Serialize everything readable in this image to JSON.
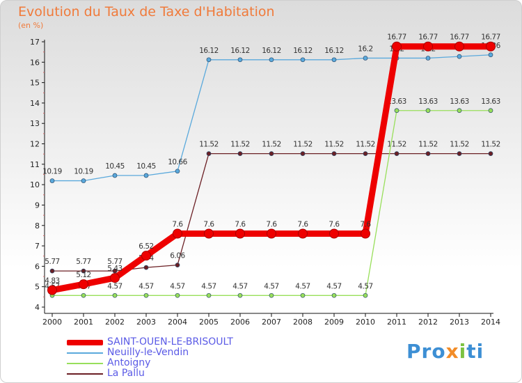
{
  "chart_data": {
    "type": "line",
    "title": "Evolution du Taux de Taxe d'Habitation",
    "unit_label": "(en %)",
    "x": [
      "2000",
      "2001",
      "2002",
      "2003",
      "2004",
      "2005",
      "2006",
      "2007",
      "2008",
      "2009",
      "2010",
      "2011",
      "2012",
      "2013",
      "2014"
    ],
    "ylim": [
      4,
      17
    ],
    "yticks": [
      "4",
      "5",
      "6",
      "7",
      "8",
      "9",
      "10",
      "11",
      "12",
      "13",
      "14",
      "15",
      "16",
      "17"
    ],
    "grid": false,
    "legend_position": "bottom-left",
    "series": [
      {
        "name": "La Pallu",
        "color": "#6b1f24",
        "values": [
          5.77,
          5.77,
          5.77,
          5.94,
          6.06,
          11.52,
          11.52,
          11.52,
          11.52,
          11.52,
          11.52,
          11.52,
          11.52,
          11.52,
          11.52
        ],
        "labels": [
          "5.77",
          "5.77",
          "5.77",
          "5.94",
          "6.06",
          "11.52",
          "11.52",
          "11.52",
          "11.52",
          "11.52",
          "11.52",
          "11.52",
          "11.52",
          "11.52",
          "11.52"
        ]
      },
      {
        "name": "Antoigny",
        "color": "#98df5a",
        "values": [
          4.57,
          4.57,
          4.57,
          4.57,
          4.57,
          4.57,
          4.57,
          4.57,
          4.57,
          4.57,
          4.57,
          13.63,
          13.63,
          13.63,
          13.63
        ],
        "labels": [
          "4.57",
          "4.57",
          "4.57",
          "4.57",
          "4.57",
          "4.57",
          "4.57",
          "4.57",
          "4.57",
          "4.57",
          "4.57",
          "13.63",
          "13.63",
          "13.63",
          "13.63"
        ]
      },
      {
        "name": "Neuilly-le-Vendin",
        "color": "#5aa9dc",
        "values": [
          10.19,
          10.19,
          10.45,
          10.45,
          10.66,
          16.12,
          16.12,
          16.12,
          16.12,
          16.12,
          16.2,
          16.2,
          16.2,
          16.28,
          16.36
        ],
        "labels": [
          "10.19",
          "10.19",
          "10.45",
          "10.45",
          "10.66",
          "16.12",
          "16.12",
          "16.12",
          "16.12",
          "16.12",
          "16.2",
          "16.2",
          "16.2",
          "16.28",
          "16.36"
        ]
      },
      {
        "name": "SAINT-OUEN-LE-BRISOULT",
        "color": "#ee0000",
        "values": [
          4.83,
          5.12,
          5.43,
          6.52,
          7.6,
          7.6,
          7.6,
          7.6,
          7.6,
          7.6,
          7.6,
          16.77,
          16.77,
          16.77,
          16.77
        ],
        "labels": [
          "4.83",
          "5.12",
          "5.43",
          "6.52",
          "7.6",
          "7.6",
          "7.6",
          "7.6",
          "7.6",
          "7.6",
          "7.6",
          "16.77",
          "16.77",
          "16.77",
          "16.77"
        ]
      }
    ],
    "legend": [
      "SAINT-OUEN-LE-BRISOULT",
      "Neuilly-le-Vendin",
      "Antoigny",
      "La Pallu"
    ]
  },
  "brand": {
    "part1": "Pro",
    "part2": "x",
    "part3": "i",
    "part4": "ti"
  }
}
